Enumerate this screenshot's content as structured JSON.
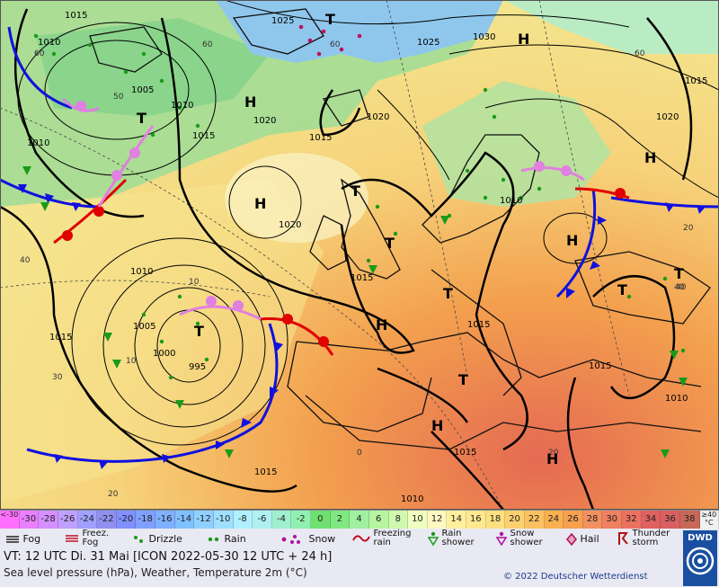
{
  "colors": {
    "sea_green": "#8fd88f",
    "warm_yellow": "#f2e68a",
    "orange": "#f7b04a",
    "hot_red": "#e9745a",
    "cold_blue": "#8fc0ec",
    "isobar": "#000000",
    "cold_front": "#1010e0",
    "warm_front": "#e00000",
    "occlusion": "#e080e0",
    "weather_green": "#1a9a1a"
  },
  "pressure_labels": [
    "1015",
    "1010",
    "1025",
    "1030",
    "1025",
    "1015",
    "1005",
    "1010",
    "1015",
    "1010",
    "1020",
    "1015",
    "1020",
    "1020",
    "1010",
    "1015",
    "1020",
    "1010",
    "1005",
    "1000",
    "995",
    "1015",
    "1015",
    "1015",
    "1015",
    "1010",
    "1015",
    "1010"
  ],
  "isotherm_labels": [
    "60",
    "60",
    "50",
    "40",
    "60",
    "60",
    "40",
    "30",
    "40",
    "20",
    "20",
    "0",
    "10",
    "10",
    "20"
  ],
  "centers": [
    "H",
    "H",
    "H",
    "H",
    "H",
    "H",
    "H",
    "H",
    "T",
    "T",
    "T",
    "T",
    "T",
    "T",
    "T",
    "T",
    "T"
  ],
  "scale": [
    "<-30",
    "-30",
    "-28",
    "-26",
    "-24",
    "-22",
    "-20",
    "-18",
    "-16",
    "-14",
    "-12",
    "-10",
    "-8",
    "-6",
    "-4",
    "-2",
    "0",
    "2",
    "4",
    "6",
    "8",
    "10",
    "12",
    "14",
    "16",
    "18",
    "20",
    "22",
    "24",
    "26",
    "28",
    "30",
    "32",
    "34",
    "36",
    "38",
    "≥40 °C"
  ],
  "scale_colors": [
    "#ff70ff",
    "#e880ff",
    "#d490ff",
    "#c0a0ff",
    "#a0a0ff",
    "#9090f0",
    "#8090ff",
    "#7fa0ff",
    "#80b0ff",
    "#80c0ff",
    "#90d0ff",
    "#a0e0ff",
    "#b0f0ff",
    "#b0f0f0",
    "#a0f0d0",
    "#90f0b0",
    "#70e070",
    "#80e880",
    "#a0f0a0",
    "#b8f5a0",
    "#d0f8b0",
    "#f0ffc0",
    "#fff8c0",
    "#fff0a0",
    "#ffe890",
    "#fde080",
    "#fcd070",
    "#fbc060",
    "#f9b050",
    "#f6a050",
    "#f39060",
    "#ef8060",
    "#ea7060",
    "#e06060",
    "#d86060",
    "#c86858",
    "#f0f0f0"
  ],
  "legend": {
    "fog": "Fog",
    "freezing_fog": "Freez. Fog",
    "drizzle": "Drizzle",
    "rain": "Rain",
    "snow": "Snow",
    "freezing_rain": "Freezing rain",
    "rain_shower": "Rain shower",
    "snow_shower": "Snow shower",
    "hail": "Hail",
    "thunderstorm": "Thunder storm"
  },
  "info": {
    "valid_time": "VT: 12 UTC Di.   31 Mai [ICON 2022-05-30   12 UTC + 24 h]",
    "description": "Sea level pressure (hPa), Weather, Temperature 2m (°C)",
    "copyright": "© 2022 Deutscher Wetterdienst",
    "logo": "DWD"
  },
  "icons": {
    "dwd_logo": "spiral-logo-icon"
  }
}
